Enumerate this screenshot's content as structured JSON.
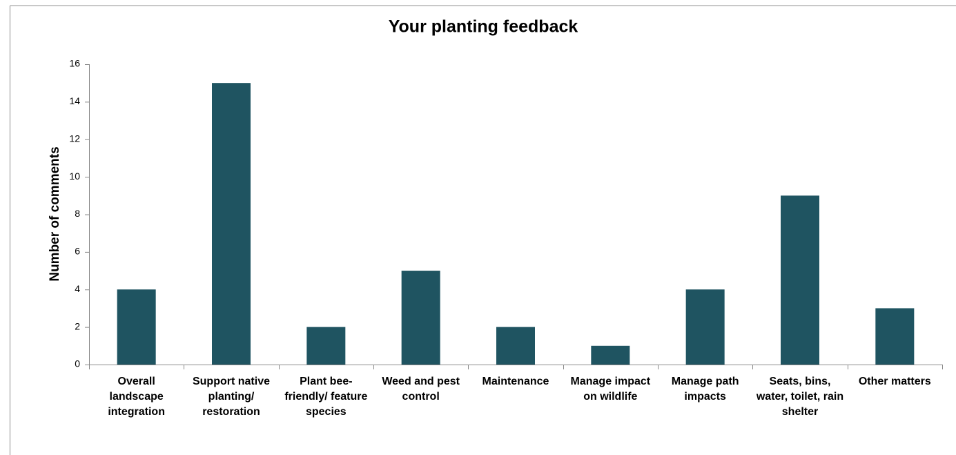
{
  "chart_data": {
    "type": "bar",
    "title": "Your planting feedback",
    "y_label": "Number of comments",
    "categories": [
      "Overall landscape integration",
      "Support native planting/ restoration",
      "Plant bee-friendly/ feature species",
      "Weed and pest control",
      "Maintenance",
      "Manage impact on wildlife",
      "Manage path impacts",
      "Seats, bins, water, toilet, rain shelter",
      "Other matters"
    ],
    "values": [
      4,
      15,
      2,
      5,
      2,
      1,
      4,
      9,
      3
    ],
    "color": "#1f5461",
    "ylim": [
      0,
      16
    ],
    "yticks": [
      0,
      2,
      4,
      6,
      8,
      10,
      12,
      14,
      16
    ],
    "grid": false
  }
}
